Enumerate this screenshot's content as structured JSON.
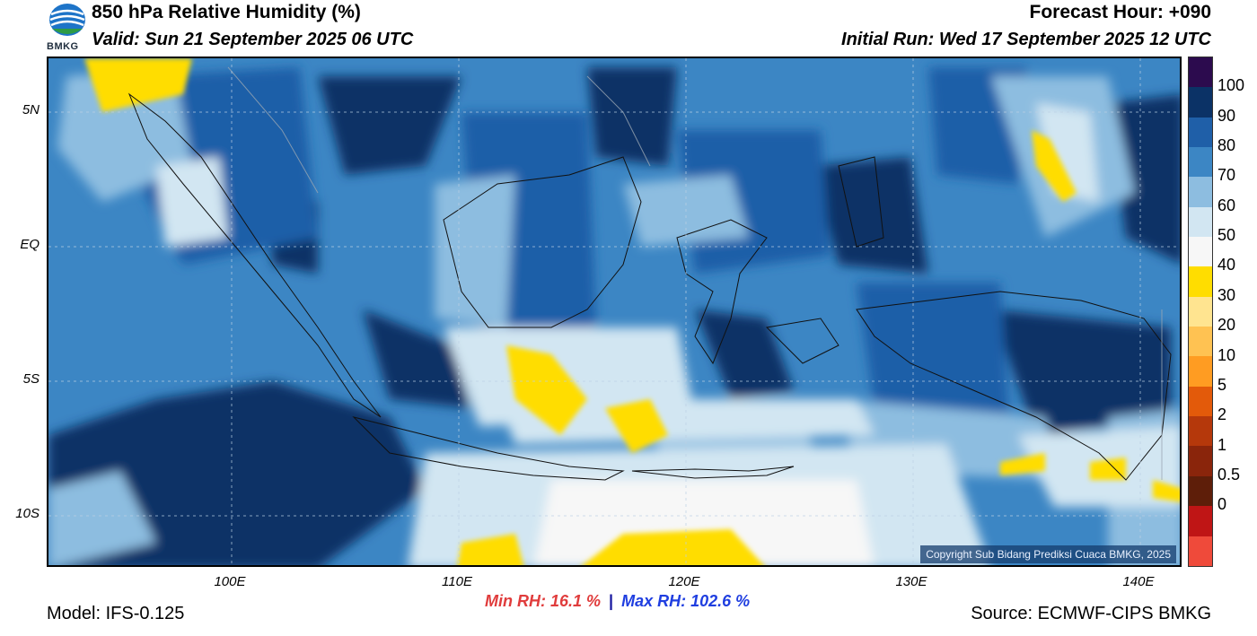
{
  "header": {
    "title": "850 hPa Relative Humidity (%)",
    "valid": "Valid: Sun 21 September 2025 06 UTC",
    "forecast_hour": "Forecast Hour: +090",
    "initial_run": "Initial Run: Wed 17 September 2025 12 UTC",
    "logo_text": "BMKG"
  },
  "map": {
    "lat_labels": [
      "5N",
      "EQ",
      "5S",
      "10S"
    ],
    "lon_labels": [
      "100E",
      "110E",
      "120E",
      "130E",
      "140E"
    ],
    "copyright": "Copyright Sub Bidang Prediksi Cuaca BMKG, 2025"
  },
  "colorbar": {
    "labels": [
      "100",
      "90",
      "80",
      "70",
      "60",
      "50",
      "40",
      "30",
      "20",
      "10",
      "5",
      "2",
      "1",
      "0.5",
      "0"
    ],
    "colors": [
      "#2c0b4e",
      "#0b3266",
      "#1f5fa8",
      "#3c86c4",
      "#8dbde0",
      "#d2e6f2",
      "#f7f7f7",
      "#ffdd00",
      "#ffe490",
      "#ffc252",
      "#ff9c22",
      "#e35a0a",
      "#b5380b",
      "#8a250b",
      "#5e1e09",
      "#bf1515",
      "#ef4a3a"
    ]
  },
  "footer": {
    "model": "Model: IFS-0.125",
    "min_rh": "Min RH:  16.1 %",
    "separator": "|",
    "max_rh": "Max RH: 102.6 %",
    "source": "Source: ECMWF-CIPS BMKG"
  }
}
